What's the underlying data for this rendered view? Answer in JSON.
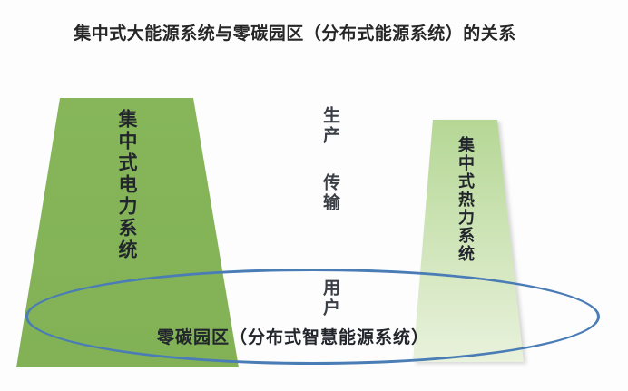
{
  "title": "集中式大能源系统与零碳园区（分布式能源系统）的关系",
  "colors": {
    "left_trapezoid": "#87b65a",
    "right_trapezoid_top": "#b5d795",
    "right_trapezoid_bottom": "#e9f2dc",
    "ellipse_stroke": "#4a7cb5",
    "text": "#21252b"
  },
  "diagram": {
    "left_system": {
      "label": "集中式电力系统"
    },
    "right_system": {
      "label": "集中式热力系统"
    },
    "stages": [
      {
        "label": "生产"
      },
      {
        "label": "传输"
      },
      {
        "label": "用户"
      }
    ],
    "zero_carbon_zone": {
      "label": "零碳园区（分布式智慧能源系统）"
    }
  }
}
